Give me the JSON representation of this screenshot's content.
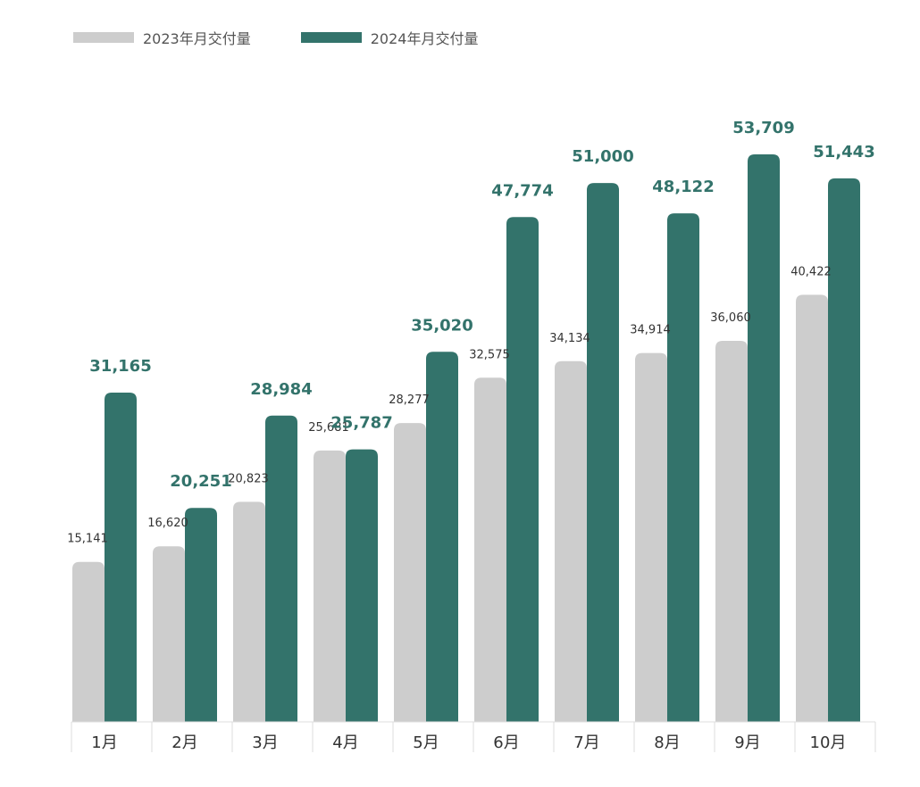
{
  "colors": {
    "series_2023": "#cdcdcd",
    "series_2024": "#33736b",
    "label_2023": "#333333",
    "label_2024": "#33736b",
    "axis": "#dddddd",
    "category_text": "#333333"
  },
  "legend": {
    "items": [
      {
        "label": "2023年月交付量",
        "color": "#cdcdcd"
      },
      {
        "label": "2024年月交付量",
        "color": "#33736b"
      }
    ]
  },
  "chart_data": {
    "type": "bar",
    "title": "",
    "xlabel": "",
    "ylabel": "",
    "categories": [
      "1月",
      "2月",
      "3月",
      "4月",
      "5月",
      "6月",
      "7月",
      "8月",
      "9月",
      "10月"
    ],
    "series": [
      {
        "name": "2023年月交付量",
        "values": [
          15141,
          16620,
          20823,
          25681,
          28277,
          32575,
          34134,
          34914,
          36060,
          40422
        ],
        "labels": [
          "15,141",
          "16,620",
          "20,823",
          "25,681",
          "28,277",
          "32,575",
          "34,134",
          "34,914",
          "36,060",
          "40,422"
        ]
      },
      {
        "name": "2024年月交付量",
        "values": [
          31165,
          20251,
          28984,
          25787,
          35020,
          47774,
          51000,
          48122,
          53709,
          51443
        ],
        "labels": [
          "31,165",
          "20,251",
          "28,984",
          "25,787",
          "35,020",
          "47,774",
          "51,000",
          "48,122",
          "53,709",
          "51,443"
        ]
      }
    ],
    "ylim": [
      0,
      53709
    ],
    "grid": false,
    "legend_position": "top-left"
  }
}
